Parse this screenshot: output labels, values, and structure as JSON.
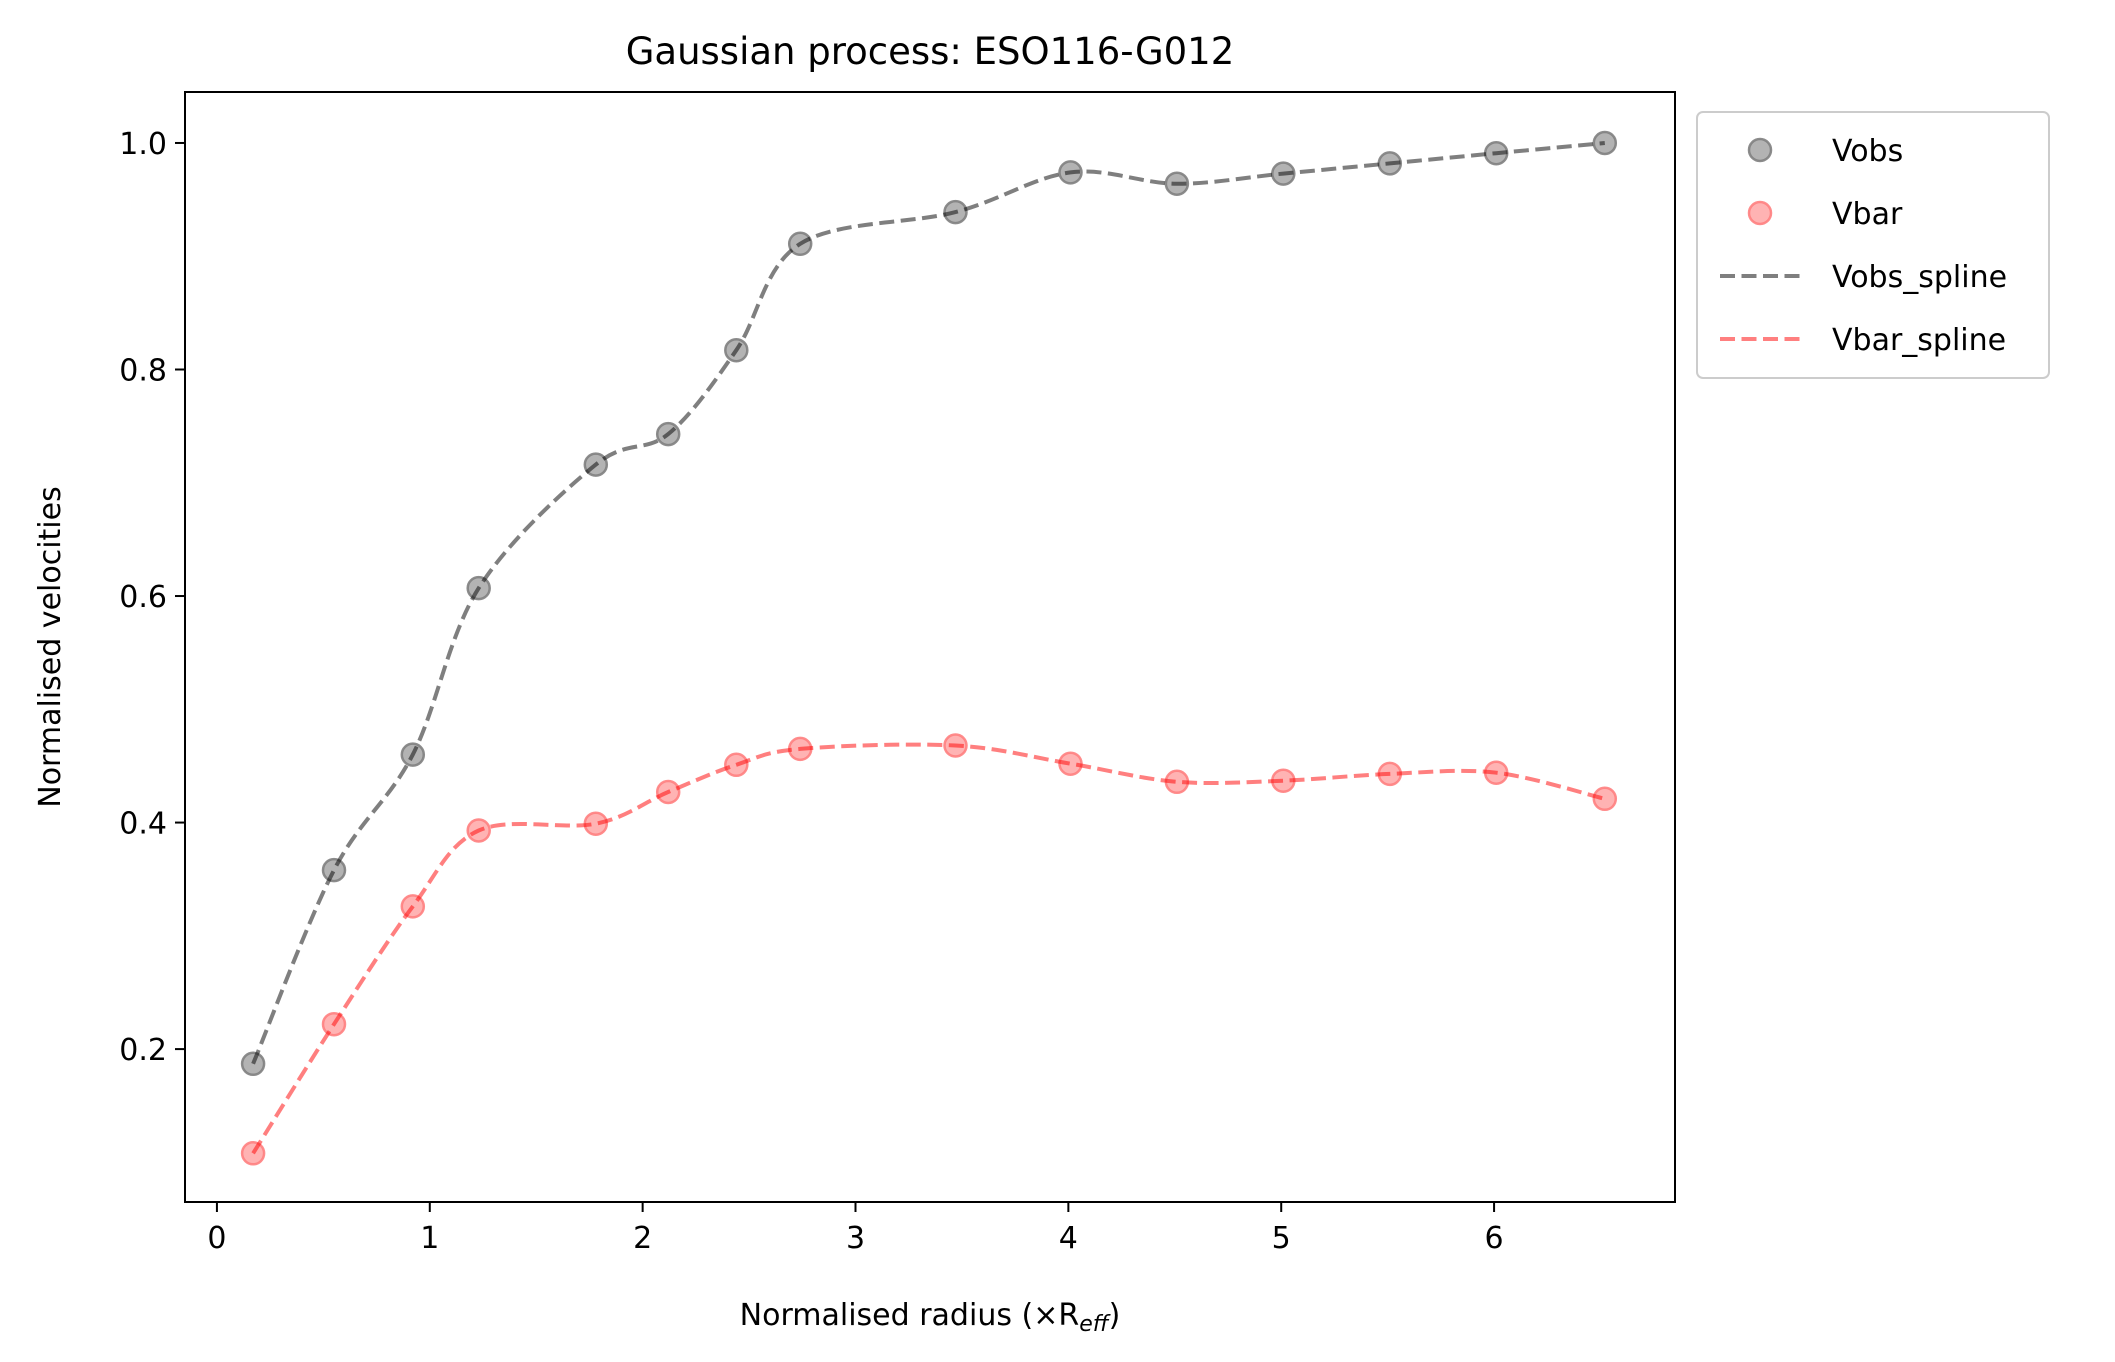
{
  "chart_data": {
    "type": "scatter",
    "title": "Gaussian process: ESO116-G012",
    "xlabel": "Normalised radius (×R",
    "xlabel_sub": "eff",
    "xlabel_end": ")",
    "ylabel": "Normalised velocities",
    "xlim": [
      -0.15,
      6.85
    ],
    "ylim": [
      0.065,
      1.045
    ],
    "xticks": [
      0,
      1,
      2,
      3,
      4,
      5,
      6
    ],
    "xtick_labels": [
      "0",
      "1",
      "2",
      "3",
      "4",
      "5",
      "6"
    ],
    "yticks": [
      0.2,
      0.4,
      0.6,
      0.8,
      1.0
    ],
    "ytick_labels": [
      "0.2",
      "0.4",
      "0.6",
      "0.8",
      "1.0"
    ],
    "grid": false,
    "legend_position": "outside-top-right",
    "x": [
      0.17,
      0.55,
      0.92,
      1.23,
      1.78,
      2.12,
      2.44,
      2.74,
      3.47,
      4.01,
      4.51,
      5.01,
      5.51,
      6.01,
      6.52
    ],
    "series": [
      {
        "name": "Vobs",
        "kind": "scatter",
        "color": "#808080",
        "values": [
          0.187,
          0.358,
          0.46,
          0.607,
          0.716,
          0.743,
          0.817,
          0.911,
          0.939,
          0.974,
          0.964,
          0.973,
          0.982,
          0.991,
          1.0
        ]
      },
      {
        "name": "Vbar",
        "kind": "scatter",
        "color": "#ff8080",
        "values": [
          0.108,
          0.222,
          0.326,
          0.393,
          0.399,
          0.427,
          0.451,
          0.465,
          0.468,
          0.452,
          0.436,
          0.437,
          0.443,
          0.444,
          0.421
        ]
      },
      {
        "name": "Vobs_spline",
        "kind": "line",
        "color": "#000000",
        "values": [
          0.187,
          0.358,
          0.46,
          0.607,
          0.716,
          0.743,
          0.817,
          0.911,
          0.939,
          0.974,
          0.964,
          0.973,
          0.982,
          0.991,
          1.0
        ]
      },
      {
        "name": "Vbar_spline",
        "kind": "line",
        "color": "#ff0000",
        "values": [
          0.108,
          0.222,
          0.326,
          0.393,
          0.399,
          0.427,
          0.451,
          0.465,
          0.468,
          0.452,
          0.436,
          0.437,
          0.443,
          0.444,
          0.421
        ]
      }
    ]
  }
}
